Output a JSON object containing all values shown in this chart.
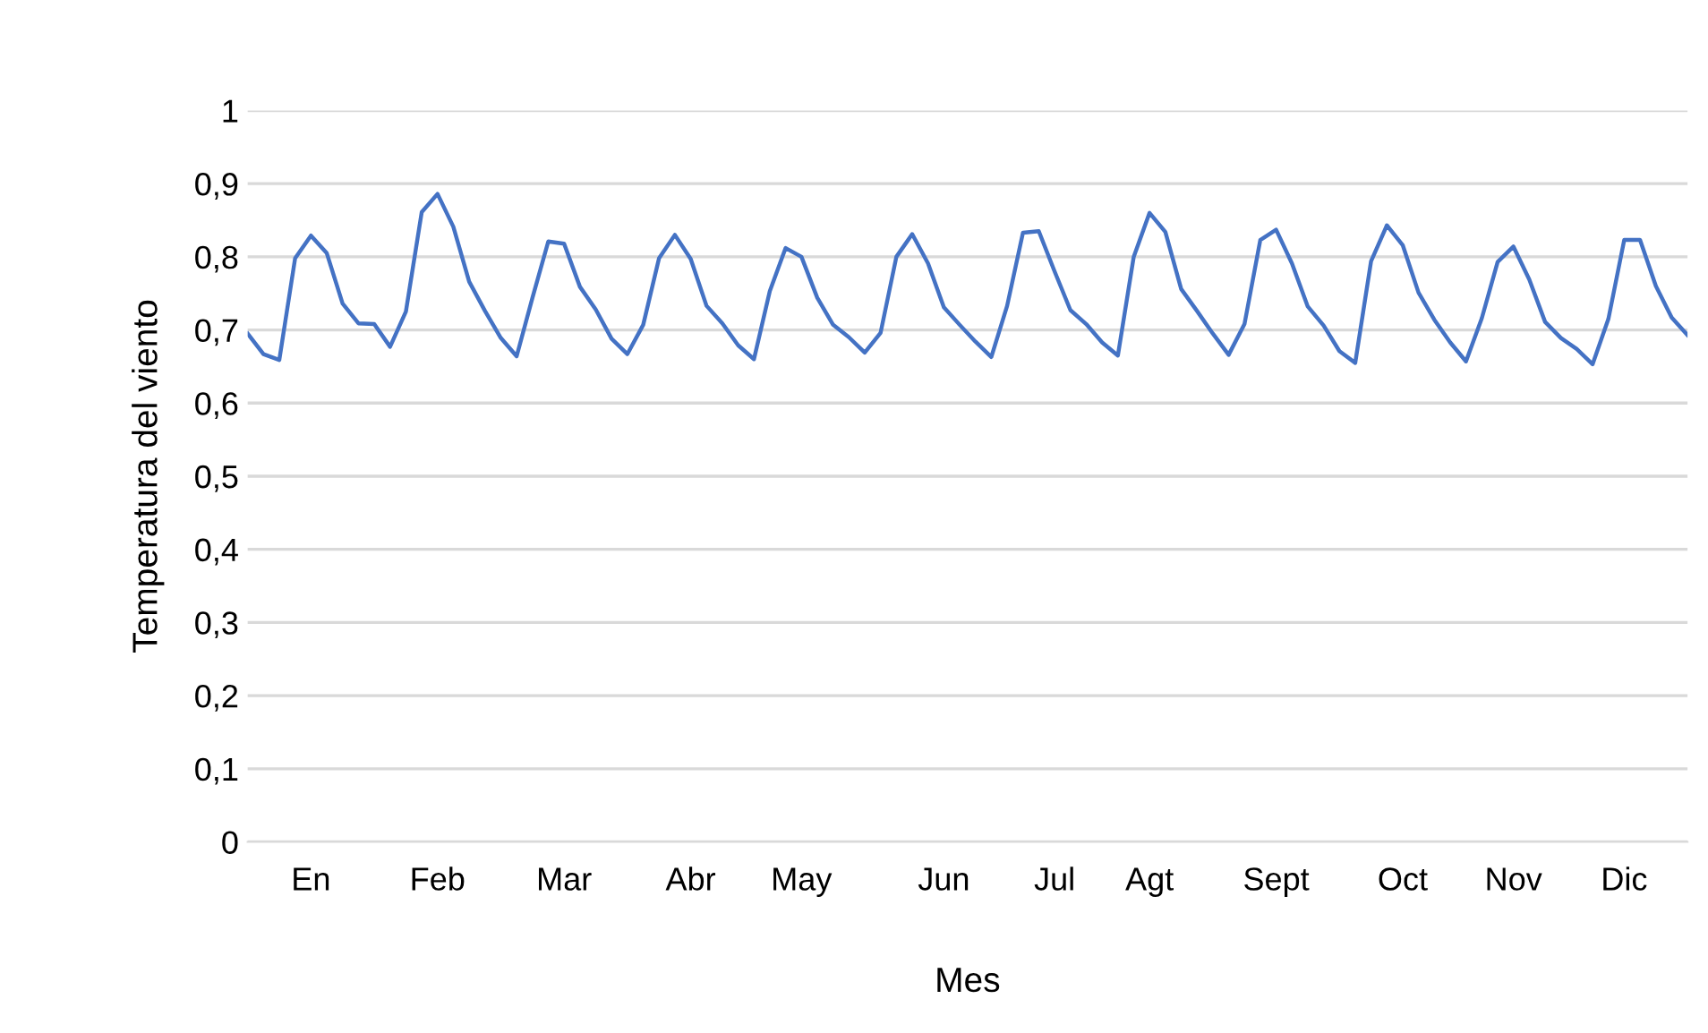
{
  "chart_data": {
    "type": "line",
    "xlabel": "Mes",
    "ylabel": "Temperatura del viento",
    "categories": [
      null,
      null,
      null,
      null,
      "En",
      null,
      null,
      null,
      null,
      null,
      null,
      null,
      "Feb",
      null,
      null,
      null,
      null,
      null,
      null,
      null,
      "Mar",
      null,
      null,
      null,
      null,
      null,
      null,
      null,
      "Abr",
      null,
      null,
      null,
      null,
      null,
      null,
      "May",
      null,
      null,
      null,
      null,
      null,
      null,
      null,
      null,
      "Jun",
      null,
      null,
      null,
      null,
      null,
      null,
      "Jul",
      null,
      null,
      null,
      null,
      null,
      "Agt",
      null,
      null,
      null,
      null,
      null,
      null,
      null,
      "Sept",
      null,
      null,
      null,
      null,
      null,
      null,
      null,
      "Oct",
      null,
      null,
      null,
      null,
      null,
      null,
      "Nov",
      null,
      null,
      null,
      null,
      null,
      null,
      "Dic",
      null,
      null,
      null,
      null
    ],
    "series": [
      {
        "color": "#4472c4",
        "values": [
          0.695,
          0.667,
          0.659,
          0.798,
          0.829,
          0.805,
          0.736,
          0.709,
          0.708,
          0.677,
          0.725,
          0.861,
          0.886,
          0.841,
          0.766,
          0.726,
          0.689,
          0.664,
          0.744,
          0.821,
          0.818,
          0.759,
          0.728,
          0.688,
          0.667,
          0.707,
          0.798,
          0.83,
          0.797,
          0.733,
          0.709,
          0.679,
          0.66,
          0.753,
          0.812,
          0.8,
          0.744,
          0.707,
          0.69,
          0.669,
          0.696,
          0.8,
          0.831,
          0.791,
          0.731,
          0.707,
          0.684,
          0.663,
          0.733,
          0.833,
          0.835,
          0.78,
          0.727,
          0.708,
          0.683,
          0.665,
          0.8,
          0.86,
          0.834,
          0.756,
          0.726,
          0.695,
          0.666,
          0.708,
          0.823,
          0.837,
          0.791,
          0.732,
          0.706,
          0.671,
          0.655,
          0.794,
          0.843,
          0.816,
          0.751,
          0.714,
          0.683,
          0.657,
          0.716,
          0.793,
          0.814,
          0.769,
          0.711,
          0.689,
          0.674,
          0.653,
          0.715,
          0.823,
          0.823,
          0.76,
          0.717,
          0.693
        ]
      }
    ],
    "ylim": [
      0,
      1
    ],
    "yticks": [
      0,
      {
        "value": 0.1,
        "label": "0,1"
      },
      {
        "value": 0.2,
        "label": "0,2"
      },
      {
        "value": 0.3,
        "label": "0,3"
      },
      {
        "value": 0.4,
        "label": "0,4"
      },
      {
        "value": 0.5,
        "label": "0,5"
      },
      {
        "value": 0.6,
        "label": "0,6"
      },
      {
        "value": 0.7,
        "label": "0,7"
      },
      {
        "value": 0.8,
        "label": "0,8"
      },
      {
        "value": 0.9,
        "label": "0,9"
      },
      1
    ],
    "grid": "y",
    "legend": false
  }
}
